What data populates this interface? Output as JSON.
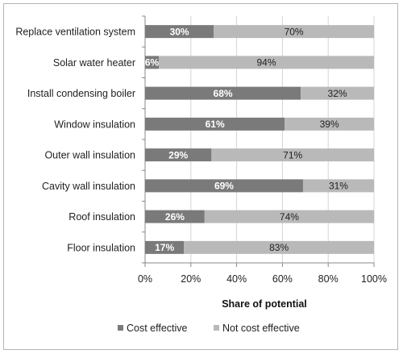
{
  "chart_data": {
    "type": "bar",
    "orientation": "horizontal",
    "stacked": "percent",
    "categories": [
      "Replace ventilation system",
      "Solar water heater",
      "Install condensing boiler",
      "Window insulation",
      "Outer wall insulation",
      "Cavity wall insulation",
      "Roof insulation",
      "Floor insulation"
    ],
    "series": [
      {
        "name": "Cost effective",
        "values": [
          30,
          6,
          68,
          61,
          29,
          69,
          26,
          17
        ],
        "color": "#7a7a7a"
      },
      {
        "name": "Not cost effective",
        "values": [
          70,
          94,
          32,
          39,
          71,
          31,
          74,
          83
        ],
        "color": "#b9b9b9"
      }
    ],
    "data_labels": [
      [
        "30%",
        "6%",
        "68%",
        "61%",
        "29%",
        "69%",
        "26%",
        "17%"
      ],
      [
        "70%",
        "94%",
        "32%",
        "39%",
        "71%",
        "31%",
        "74%",
        "83%"
      ]
    ],
    "xlabel": "Share of potential",
    "ylabel": "",
    "xlim": [
      0,
      100
    ],
    "xticks": [
      "0%",
      "20%",
      "40%",
      "60%",
      "80%",
      "100%"
    ],
    "grid": true,
    "legend": "bottom"
  }
}
